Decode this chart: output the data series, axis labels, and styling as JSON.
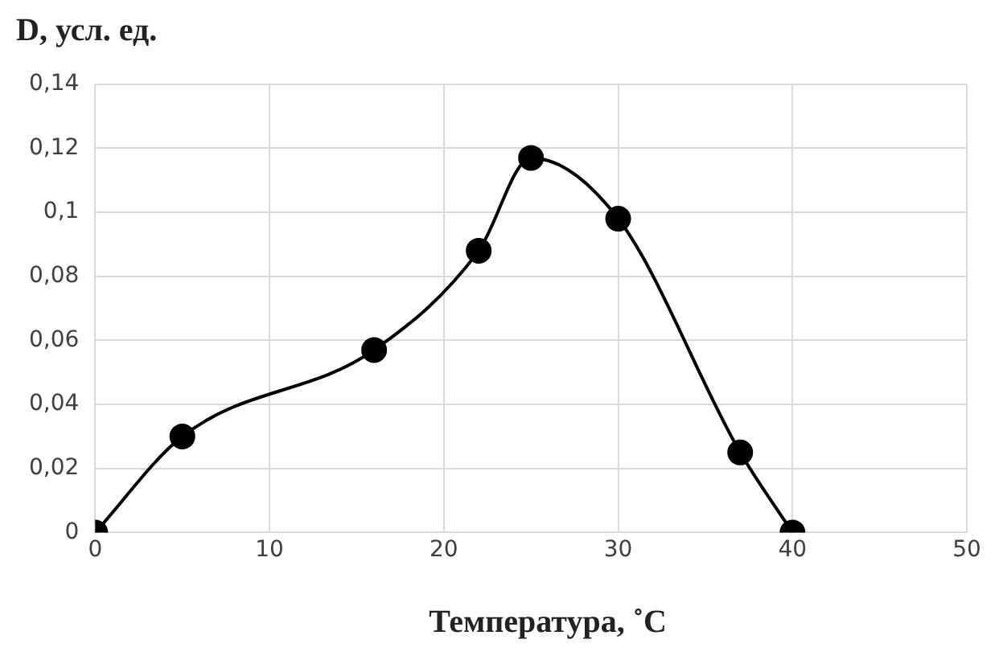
{
  "chart_data": {
    "type": "line",
    "ylabel": "D, усл. ед.",
    "xlabel": "Температура, ˚C",
    "x": [
      0,
      5,
      16,
      22,
      25,
      30,
      37,
      40
    ],
    "series": [
      {
        "color": "#000000",
        "values": [
          0,
          0.03,
          0.057,
          0.088,
          0.117,
          0.098,
          0.025,
          0
        ]
      }
    ],
    "xlim": [
      0,
      50
    ],
    "xticks": [
      0,
      10,
      20,
      30,
      40,
      50
    ],
    "ylim": [
      0,
      0.14
    ],
    "yticks": [
      0,
      {
        "value": 0.02,
        "label": "0,02"
      },
      {
        "value": 0.04,
        "label": "0,04"
      },
      {
        "value": 0.06,
        "label": "0,06"
      },
      {
        "value": 0.08,
        "label": "0,08"
      },
      {
        "value": 0.1,
        "label": "0,1"
      },
      {
        "value": 0.12,
        "label": "0,12"
      },
      {
        "value": 0.14,
        "label": "0,14"
      }
    ],
    "grid": true,
    "marker": "circle",
    "line_style": "solid",
    "legend": false
  }
}
